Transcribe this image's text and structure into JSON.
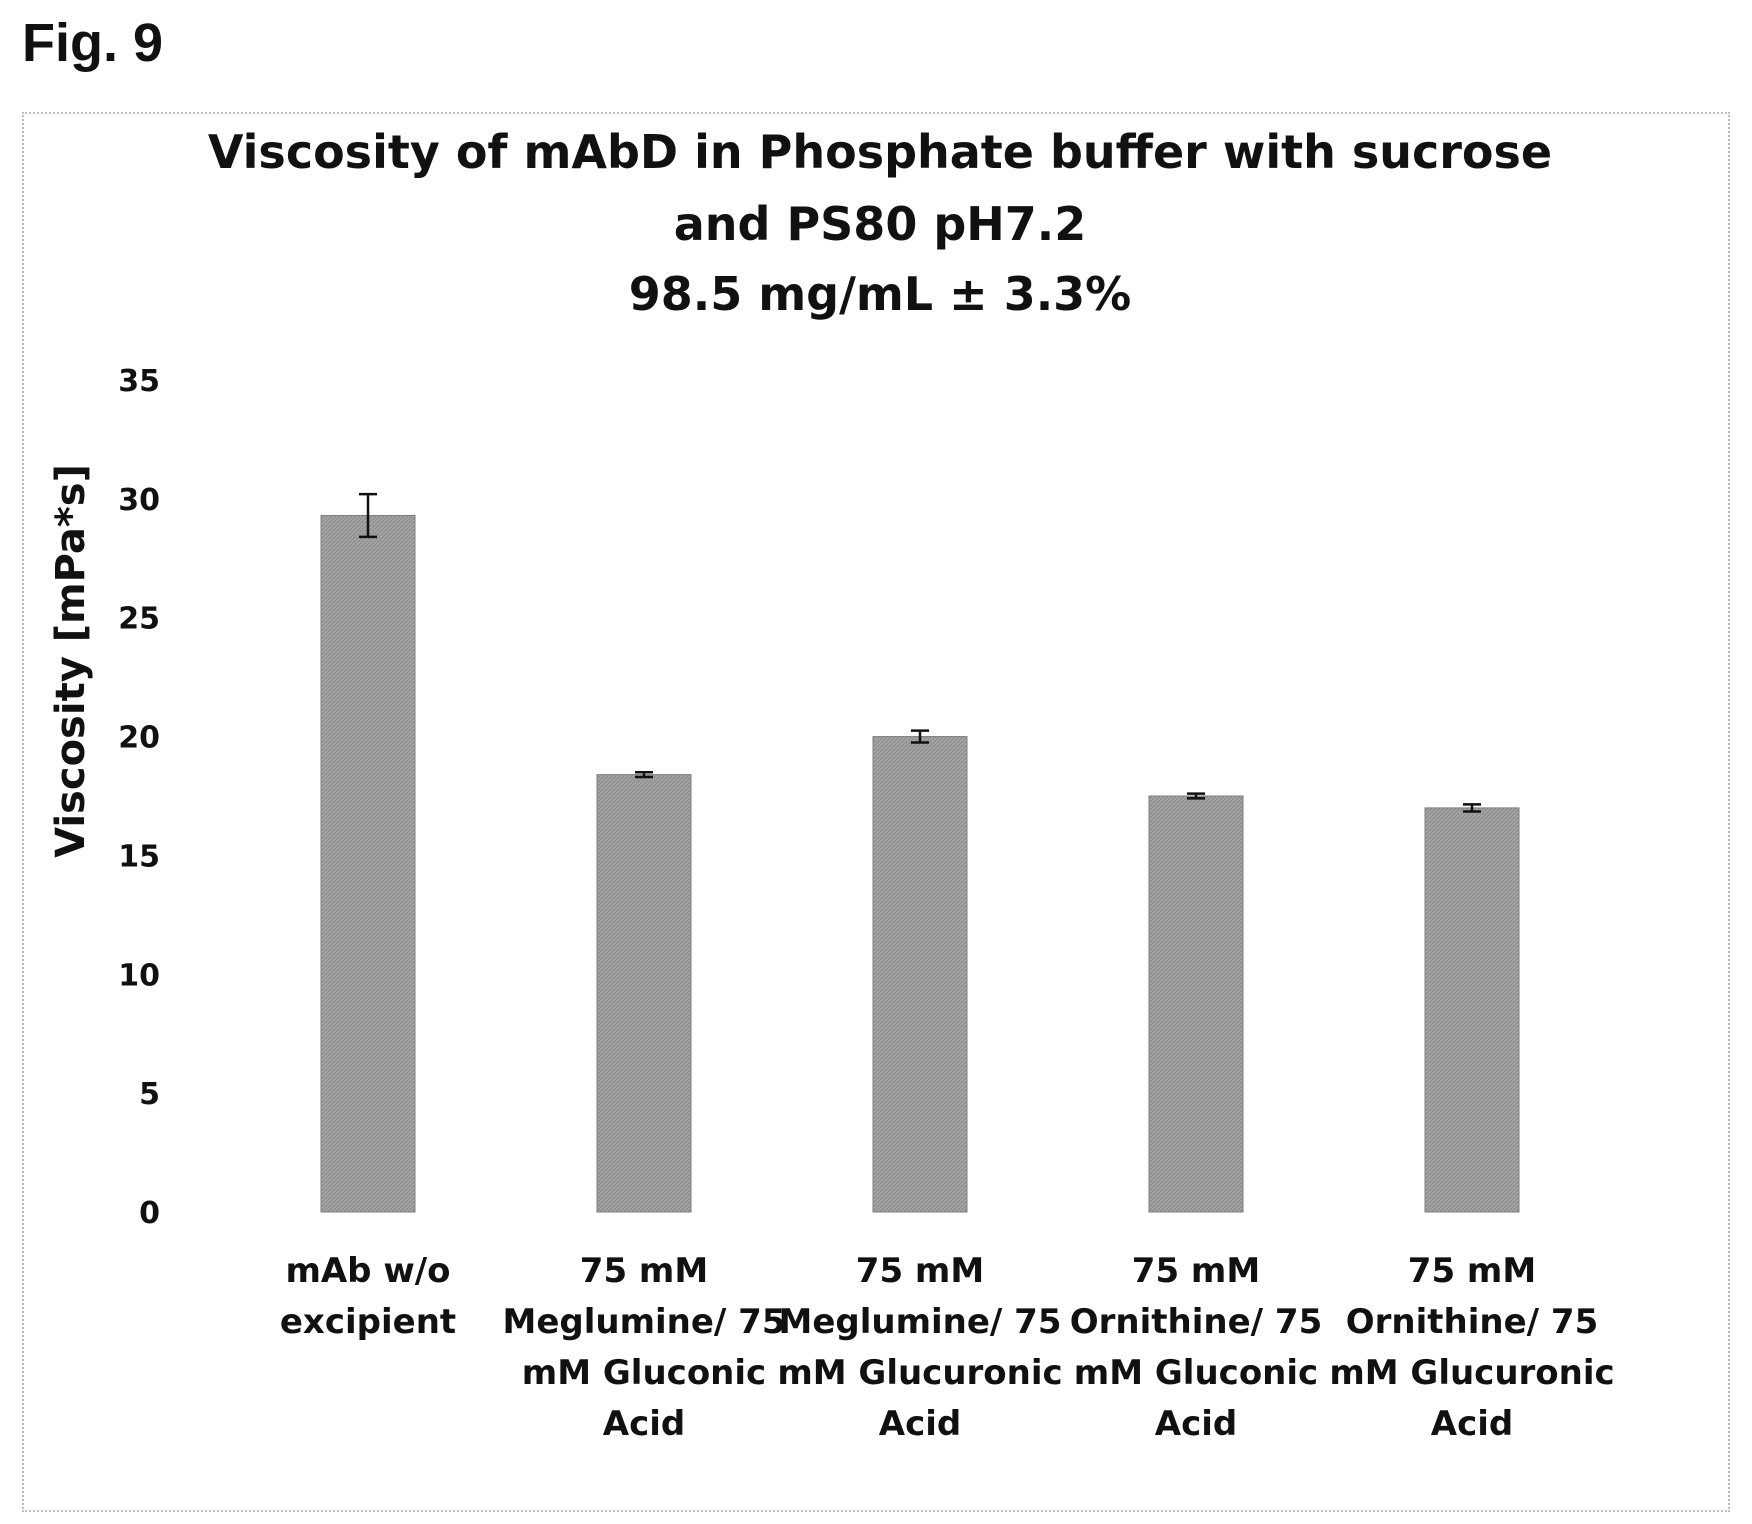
{
  "figure_label": "Fig. 9",
  "chart_data": {
    "type": "bar",
    "title": [
      "Viscosity of mAbD in Phosphate buffer with sucrose",
      "and PS80 pH7.2",
      "98.5 mg/mL ± 3.3%"
    ],
    "ylabel": "Viscosity [mPa*s]",
    "xlabel": "",
    "ylim": [
      0,
      35
    ],
    "yticks": [
      0,
      5,
      10,
      15,
      20,
      25,
      30,
      35
    ],
    "grid": false,
    "categories": [
      [
        "mAb w/o",
        "excipient"
      ],
      [
        "75 mM",
        "Meglumine/ 75",
        "mM Gluconic",
        "Acid"
      ],
      [
        "75 mM",
        "Meglumine/ 75",
        "mM Glucuronic",
        "Acid"
      ],
      [
        "75 mM",
        "Ornithine/ 75",
        "mM Gluconic",
        "Acid"
      ],
      [
        "75 mM",
        "Ornithine/ 75",
        "mM Glucuronic",
        "Acid"
      ]
    ],
    "values": [
      29.3,
      18.4,
      20.0,
      17.5,
      17.0
    ],
    "errors": [
      0.9,
      0.1,
      0.25,
      0.1,
      0.15
    ],
    "bar_color": "#9a9a9a"
  }
}
